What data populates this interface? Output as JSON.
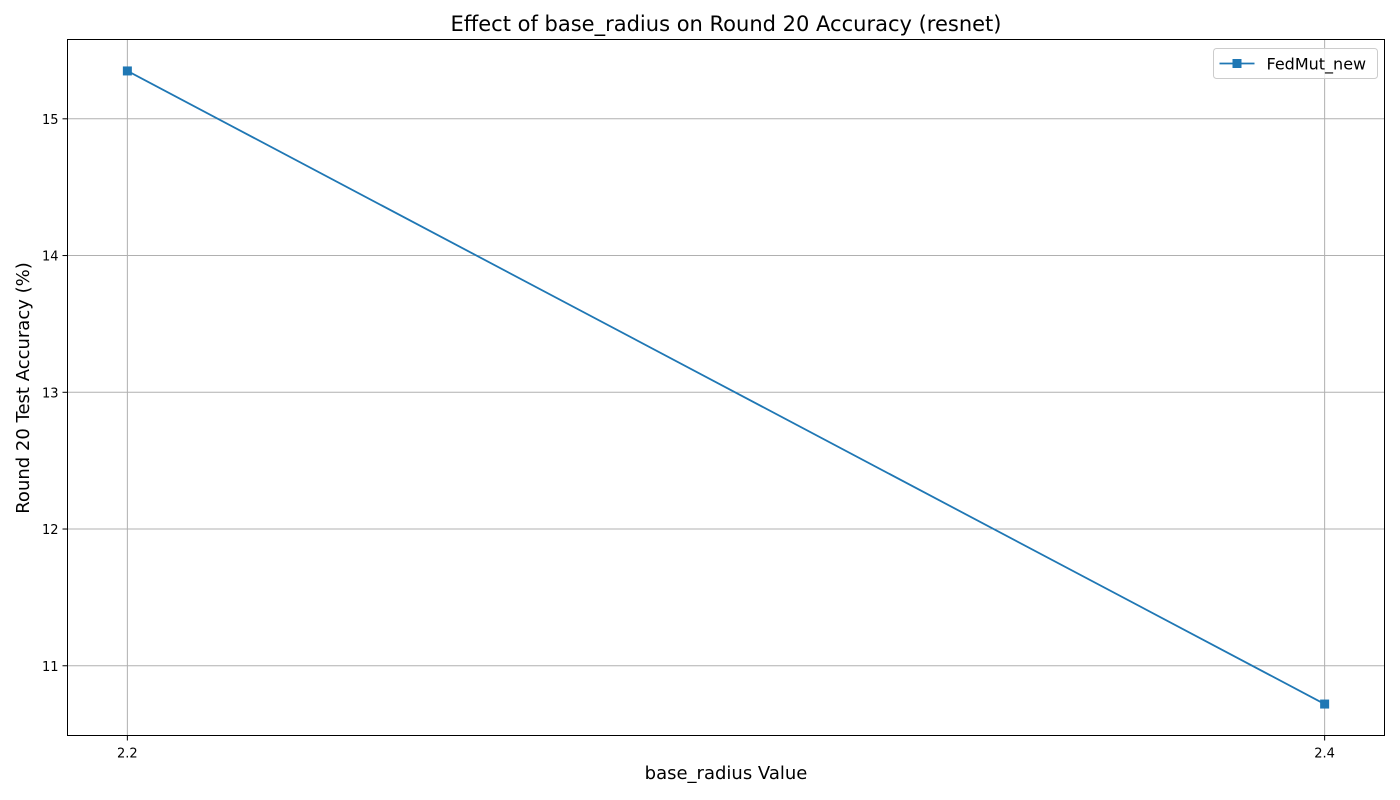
{
  "chart_data": {
    "type": "line",
    "title": "Effect of base_radius on Round 20 Accuracy (resnet)",
    "xlabel": "base_radius Value",
    "ylabel": "Round 20 Test Accuracy (%)",
    "x": [
      2.2,
      2.4
    ],
    "xticks": [
      "2.2",
      "2.4"
    ],
    "yticks": [
      "11",
      "12",
      "13",
      "14",
      "15"
    ],
    "xlim": [
      2.19,
      2.41
    ],
    "ylim": [
      10.49,
      15.58
    ],
    "grid": true,
    "legend_position": "top-right",
    "series": [
      {
        "name": "FedMut_new",
        "values": [
          15.35,
          10.72
        ],
        "color": "#1f77b4",
        "marker": "square"
      }
    ]
  }
}
